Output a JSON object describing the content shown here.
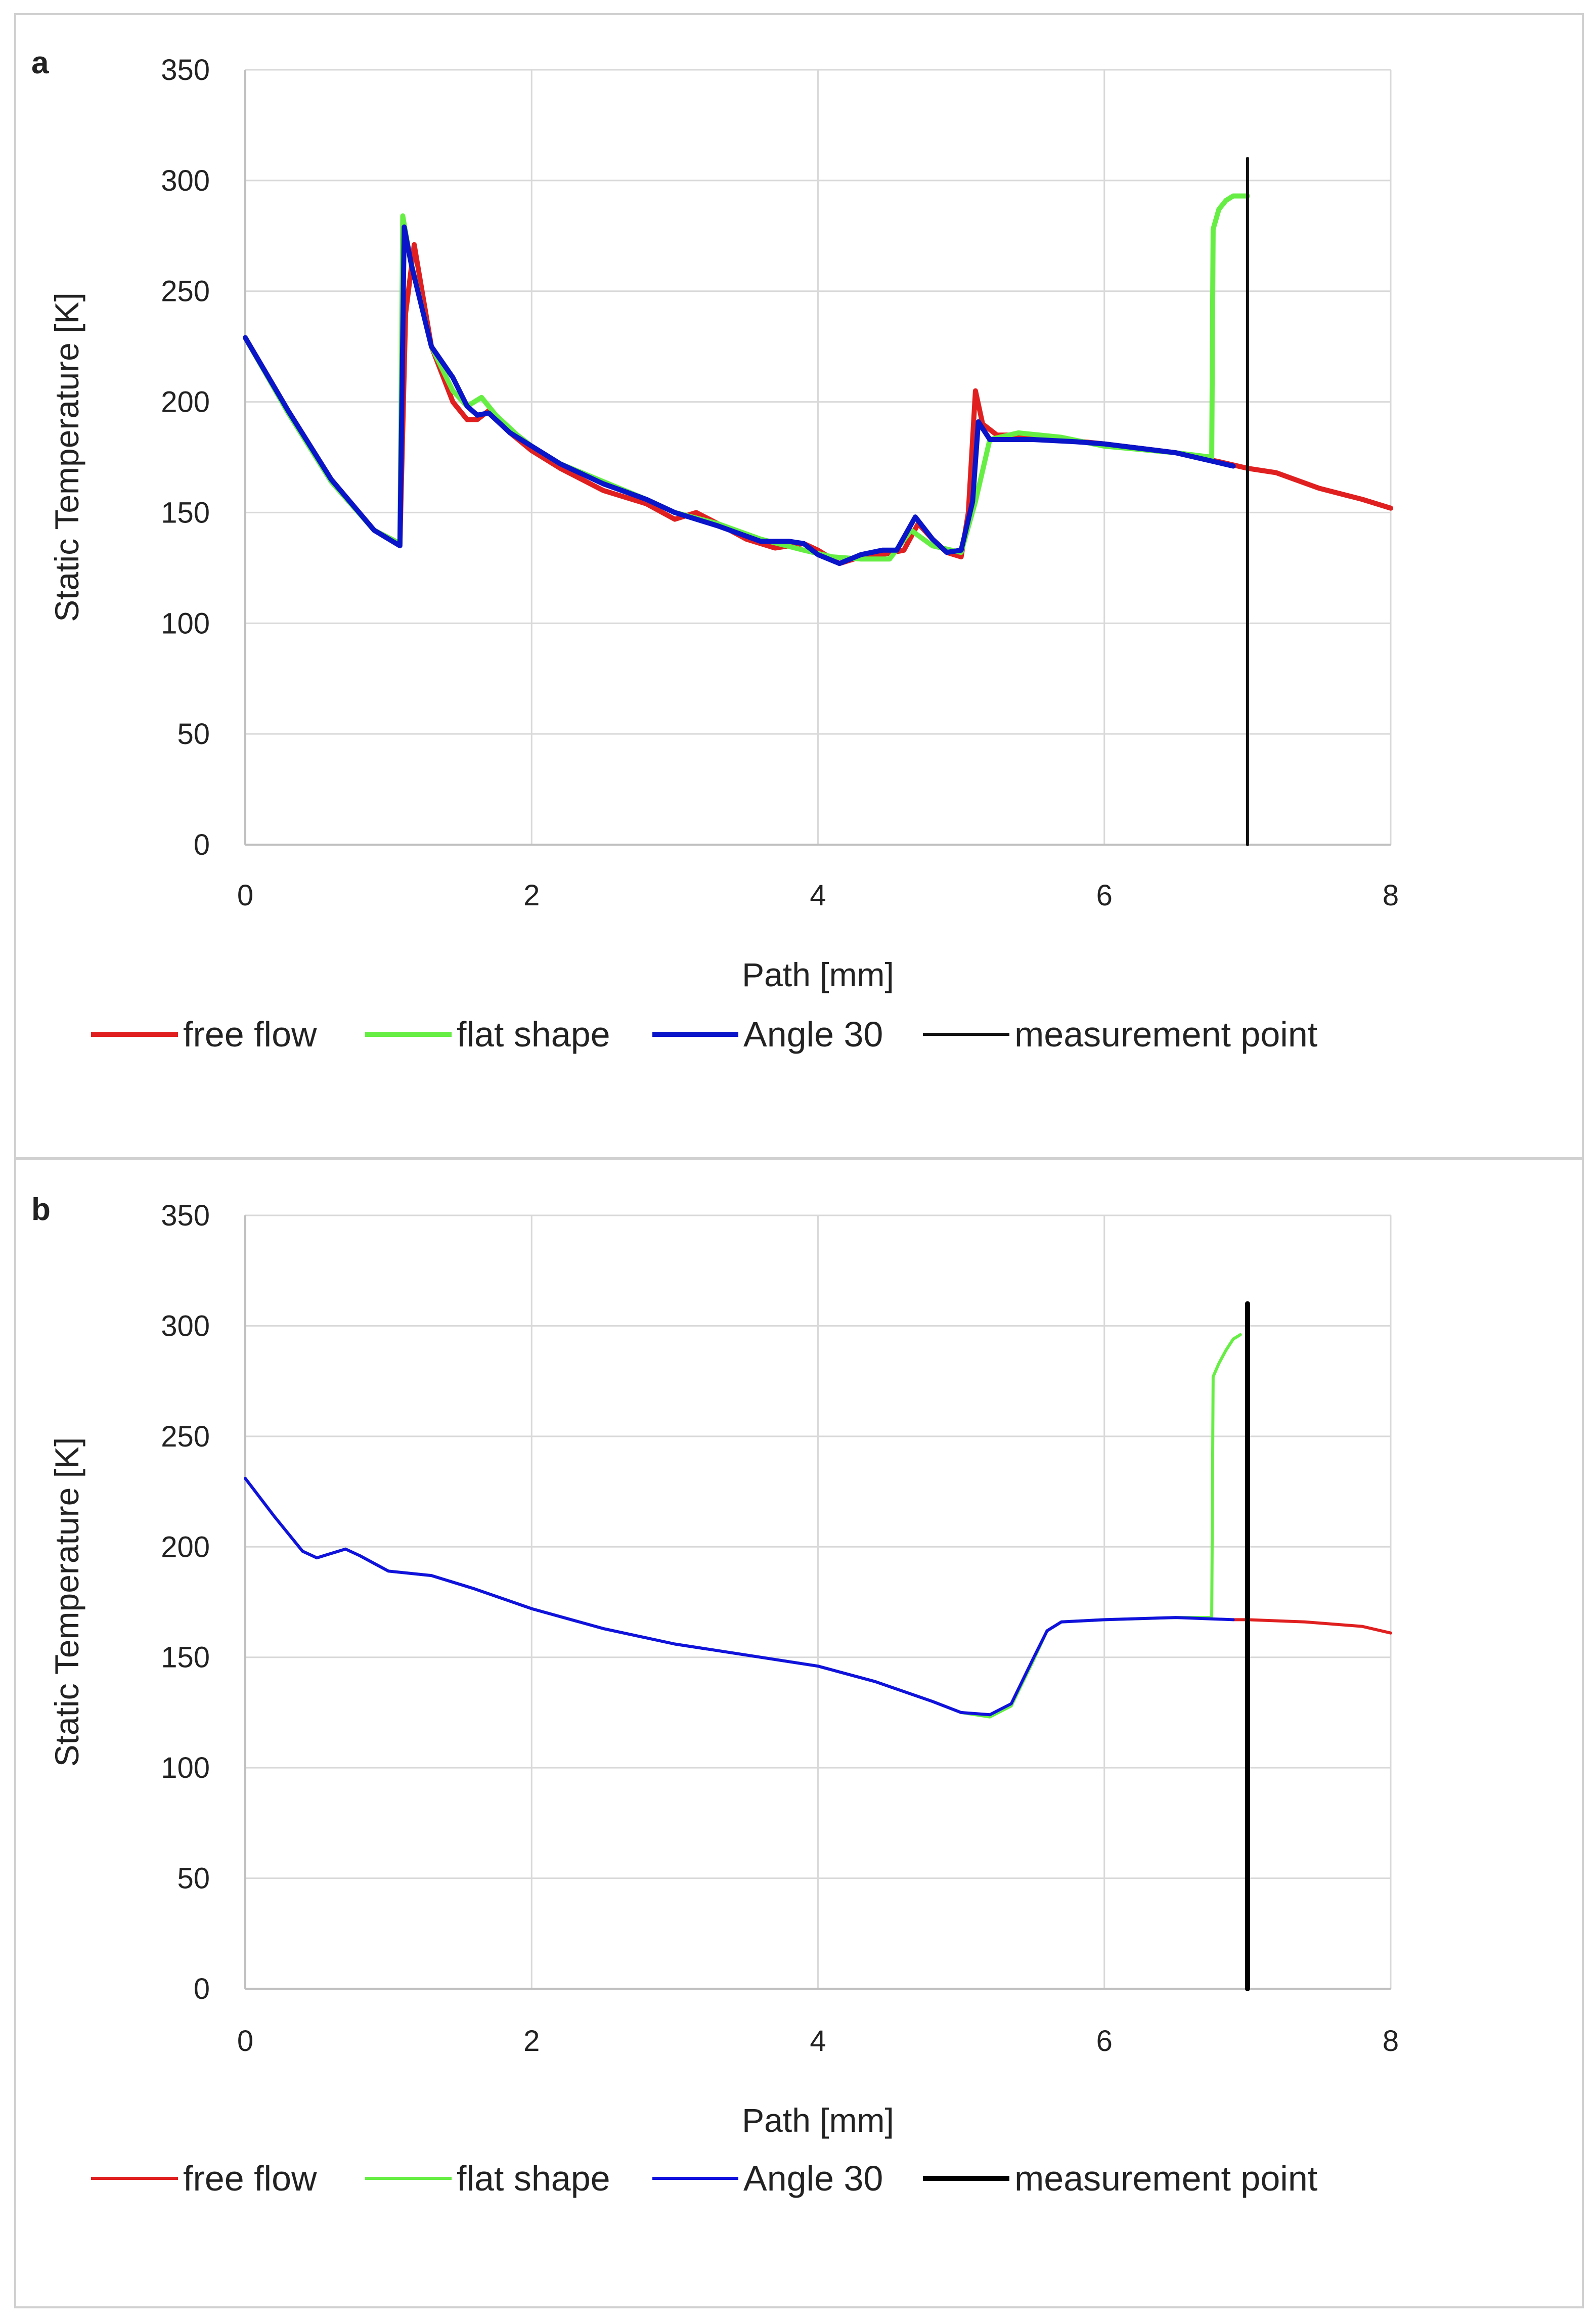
{
  "chart_data": [
    {
      "panel": "a",
      "type": "line",
      "xlabel": "Path [mm]",
      "ylabel": "Static Temperature [K]",
      "xlim": [
        0,
        8
      ],
      "ylim": [
        0,
        350
      ],
      "xticks": [
        0,
        2,
        4,
        6,
        8
      ],
      "yticks": [
        0,
        50,
        100,
        150,
        200,
        250,
        300,
        350
      ],
      "grid": true,
      "legend_position": "bottom",
      "series": [
        {
          "name": "free flow",
          "color": "#e02020",
          "width": "thick",
          "x": [
            0,
            0.3,
            0.6,
            0.9,
            1.08,
            1.12,
            1.18,
            1.3,
            1.45,
            1.55,
            1.62,
            1.7,
            1.85,
            2.0,
            2.2,
            2.5,
            2.8,
            3.0,
            3.15,
            3.3,
            3.5,
            3.7,
            3.9,
            4.0,
            4.15,
            4.3,
            4.45,
            4.6,
            4.7,
            4.8,
            4.9,
            5.0,
            5.05,
            5.1,
            5.15,
            5.25,
            5.4,
            5.7,
            6.0,
            6.5,
            6.8,
            7.0,
            7.2,
            7.5,
            7.8,
            8.0
          ],
          "y": [
            229,
            196,
            165,
            142,
            136,
            240,
            271,
            225,
            200,
            192,
            192,
            196,
            186,
            178,
            170,
            160,
            154,
            147,
            150,
            145,
            138,
            134,
            136,
            133,
            127,
            130,
            131,
            133,
            145,
            138,
            132,
            130,
            150,
            205,
            190,
            185,
            185,
            183,
            181,
            177,
            173,
            170,
            168,
            161,
            156,
            152
          ]
        },
        {
          "name": "flat shape",
          "color": "#66ee44",
          "width": "thick",
          "x": [
            0,
            0.3,
            0.6,
            0.9,
            1.08,
            1.1,
            1.15,
            1.3,
            1.45,
            1.55,
            1.65,
            1.75,
            1.9,
            2.0,
            2.2,
            2.5,
            2.8,
            3.0,
            3.3,
            3.6,
            3.9,
            4.1,
            4.3,
            4.5,
            4.65,
            4.8,
            5.0,
            5.1,
            5.2,
            5.4,
            5.7,
            6.0,
            6.5,
            6.75,
            6.76,
            6.8,
            6.85,
            6.9,
            7.0
          ],
          "y": [
            229,
            195,
            164,
            142,
            136,
            284,
            265,
            225,
            205,
            198,
            202,
            194,
            185,
            180,
            172,
            164,
            156,
            150,
            145,
            138,
            133,
            130,
            129,
            129,
            142,
            135,
            132,
            155,
            183,
            186,
            184,
            180,
            177,
            175,
            278,
            287,
            291,
            293,
            293
          ]
        },
        {
          "name": "Angle 30",
          "color": "#0a14c8",
          "width": "thick",
          "x": [
            0,
            0.3,
            0.6,
            0.9,
            1.08,
            1.11,
            1.16,
            1.3,
            1.45,
            1.55,
            1.62,
            1.7,
            1.85,
            2.0,
            2.2,
            2.5,
            2.8,
            3.0,
            3.3,
            3.6,
            3.8,
            3.9,
            4.0,
            4.15,
            4.3,
            4.45,
            4.55,
            4.68,
            4.8,
            4.9,
            5.0,
            5.08,
            5.12,
            5.2,
            5.5,
            5.8,
            6.0,
            6.5,
            6.9
          ],
          "y": [
            229,
            196,
            165,
            142,
            135,
            279,
            262,
            225,
            211,
            198,
            194,
            195,
            186,
            180,
            172,
            163,
            156,
            150,
            144,
            137,
            137,
            136,
            131,
            127,
            131,
            133,
            133,
            148,
            138,
            132,
            133,
            155,
            191,
            183,
            183,
            182,
            181,
            177,
            171
          ]
        },
        {
          "name": "measurement point",
          "color": "#111111",
          "width": "thin",
          "x": [
            7.0,
            7.0
          ],
          "y": [
            0,
            310
          ]
        }
      ]
    },
    {
      "panel": "b",
      "type": "line",
      "xlabel": "Path [mm]",
      "ylabel": "Static Temperature [K]",
      "xlim": [
        0,
        8
      ],
      "ylim": [
        0,
        350
      ],
      "xticks": [
        0,
        2,
        4,
        6,
        8
      ],
      "yticks": [
        0,
        50,
        100,
        150,
        200,
        250,
        300,
        350
      ],
      "grid": true,
      "legend_position": "bottom",
      "series": [
        {
          "name": "free flow",
          "color": "#e02020",
          "width": "thin",
          "x": [
            6.9,
            7.0,
            7.4,
            7.8,
            8.0
          ],
          "y": [
            167,
            167,
            166,
            164,
            161
          ]
        },
        {
          "name": "flat shape",
          "color": "#66ee44",
          "width": "thin",
          "x": [
            0,
            0.2,
            0.4,
            0.5,
            0.6,
            0.7,
            0.8,
            1.0,
            1.3,
            1.6,
            2.0,
            2.5,
            3.0,
            3.5,
            4.0,
            4.4,
            4.8,
            5.0,
            5.2,
            5.35,
            5.5,
            5.6,
            5.7,
            6.0,
            6.5,
            6.75,
            6.76,
            6.8,
            6.85,
            6.9,
            6.95
          ],
          "y": [
            231,
            214,
            198,
            195,
            197,
            199,
            196,
            189,
            187,
            181,
            172,
            163,
            156,
            151,
            146,
            139,
            130,
            125,
            123,
            128,
            148,
            162,
            166,
            167,
            168,
            168,
            277,
            283,
            289,
            294,
            296
          ]
        },
        {
          "name": "Angle 30",
          "color": "#1111dd",
          "width": "thin",
          "x": [
            0,
            0.2,
            0.4,
            0.5,
            0.6,
            0.7,
            0.8,
            1.0,
            1.3,
            1.6,
            2.0,
            2.5,
            3.0,
            3.5,
            4.0,
            4.4,
            4.8,
            5.0,
            5.2,
            5.35,
            5.5,
            5.6,
            5.7,
            6.0,
            6.5,
            6.9
          ],
          "y": [
            231,
            214,
            198,
            195,
            197,
            199,
            196,
            189,
            187,
            181,
            172,
            163,
            156,
            151,
            146,
            139,
            130,
            125,
            124,
            129,
            149,
            162,
            166,
            167,
            168,
            167
          ]
        },
        {
          "name": "measurement point",
          "color": "#000000",
          "width": "thick",
          "x": [
            7.0,
            7.0
          ],
          "y": [
            0,
            310
          ]
        }
      ]
    }
  ]
}
